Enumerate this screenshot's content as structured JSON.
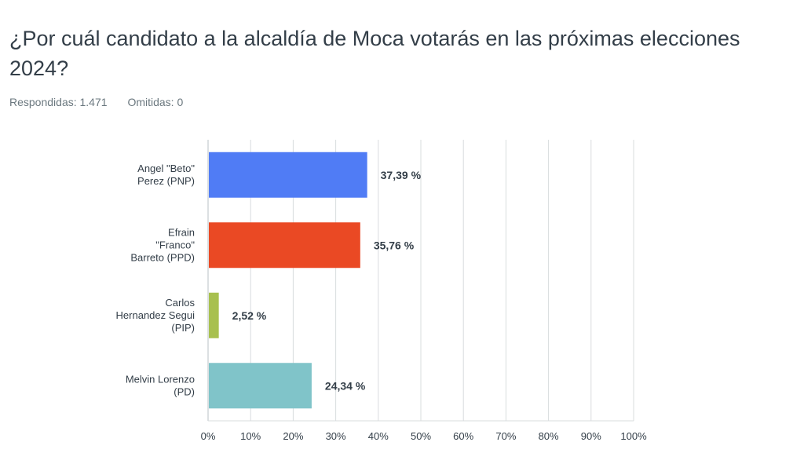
{
  "question": {
    "title": "¿Por cuál candidato a la alcaldía de Moca votarás en las próximas elecciones 2024?",
    "answered_label": "Respondidas: 1.471",
    "skipped_label": "Omitidas: 0"
  },
  "chart_data": {
    "type": "bar",
    "orientation": "horizontal",
    "categories": [
      [
        "Angel \"Beto\"",
        "Perez (PNP)"
      ],
      [
        "Efrain",
        "\"Franco\"",
        "Barreto (PPD)"
      ],
      [
        "Carlos",
        "Hernandez Segui",
        "(PIP)"
      ],
      [
        "Melvin Lorenzo",
        "(PD)"
      ]
    ],
    "values": [
      37.39,
      35.76,
      2.52,
      24.34
    ],
    "value_labels": [
      "37,39 %",
      "35,76 %",
      "2,52 %",
      "24,34 %"
    ],
    "colors": [
      "#507cf5",
      "#ea4924",
      "#a8c04f",
      "#80c4c9"
    ],
    "xlim": [
      0,
      100
    ],
    "ticks": [
      0,
      10,
      20,
      30,
      40,
      50,
      60,
      70,
      80,
      90,
      100
    ],
    "tick_labels": [
      "0%",
      "10%",
      "20%",
      "30%",
      "40%",
      "50%",
      "60%",
      "70%",
      "80%",
      "90%",
      "100%"
    ],
    "grid": true,
    "gridline_color": "#d8dcde"
  }
}
